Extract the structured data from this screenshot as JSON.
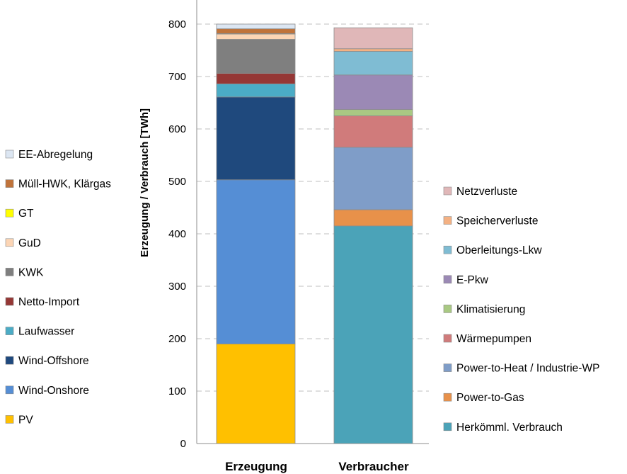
{
  "chart_data": {
    "type": "bar",
    "stacked": true,
    "categories": [
      "Erzeugung",
      "Verbraucher"
    ],
    "xlabel": "",
    "ylabel": "Erzeugung / Verbrauch [TWh]",
    "ylim": [
      0,
      800
    ],
    "yticks": [
      0,
      100,
      200,
      300,
      400,
      500,
      600,
      700,
      800
    ],
    "grid": true,
    "legend_placement": "left (Erzeugung) and right (Verbraucher)",
    "groups": [
      {
        "category": "Erzeugung",
        "legend_position": "left",
        "series": [
          {
            "name": "PV",
            "value": 190,
            "color": "#FFC000"
          },
          {
            "name": "Wind-Onshore",
            "value": 313,
            "color": "#558ED5"
          },
          {
            "name": "Wind-Offshore",
            "value": 158,
            "color": "#1F497D"
          },
          {
            "name": "Laufwasser",
            "value": 25,
            "color": "#4BACC6"
          },
          {
            "name": "Netto-Import",
            "value": 20,
            "color": "#953735"
          },
          {
            "name": "KWK",
            "value": 65,
            "color": "#7F7F7F"
          },
          {
            "name": "GuD",
            "value": 10,
            "color": "#FCD5B5"
          },
          {
            "name": "GT",
            "value": 1,
            "color": "#FFFF00"
          },
          {
            "name": "Müll-HWK, Klärgas",
            "value": 9,
            "color": "#C0733A"
          },
          {
            "name": "EE-Abregelung",
            "value": 9,
            "color": "#DCE6F2"
          }
        ]
      },
      {
        "category": "Verbraucher",
        "legend_position": "right",
        "series": [
          {
            "name": "Herkömml. Verbrauch",
            "value": 415,
            "color": "#4BA3B8"
          },
          {
            "name": "Power-to-Gas",
            "value": 31,
            "color": "#E8914A"
          },
          {
            "name": "Power-to-Heat / Industrie-WP",
            "value": 119,
            "color": "#7F9DC8"
          },
          {
            "name": "Wärmepumpen",
            "value": 60,
            "color": "#D07B7B"
          },
          {
            "name": "Klimatisierung",
            "value": 12,
            "color": "#A9C983"
          },
          {
            "name": "E-Pkw",
            "value": 66,
            "color": "#9B89B5"
          },
          {
            "name": "Oberleitungs-Lkw",
            "value": 45,
            "color": "#7FBCD3"
          },
          {
            "name": "Speicherverluste",
            "value": 5,
            "color": "#F4B183"
          },
          {
            "name": "Netzverluste",
            "value": 40,
            "color": "#E0B7B8"
          }
        ]
      }
    ]
  }
}
